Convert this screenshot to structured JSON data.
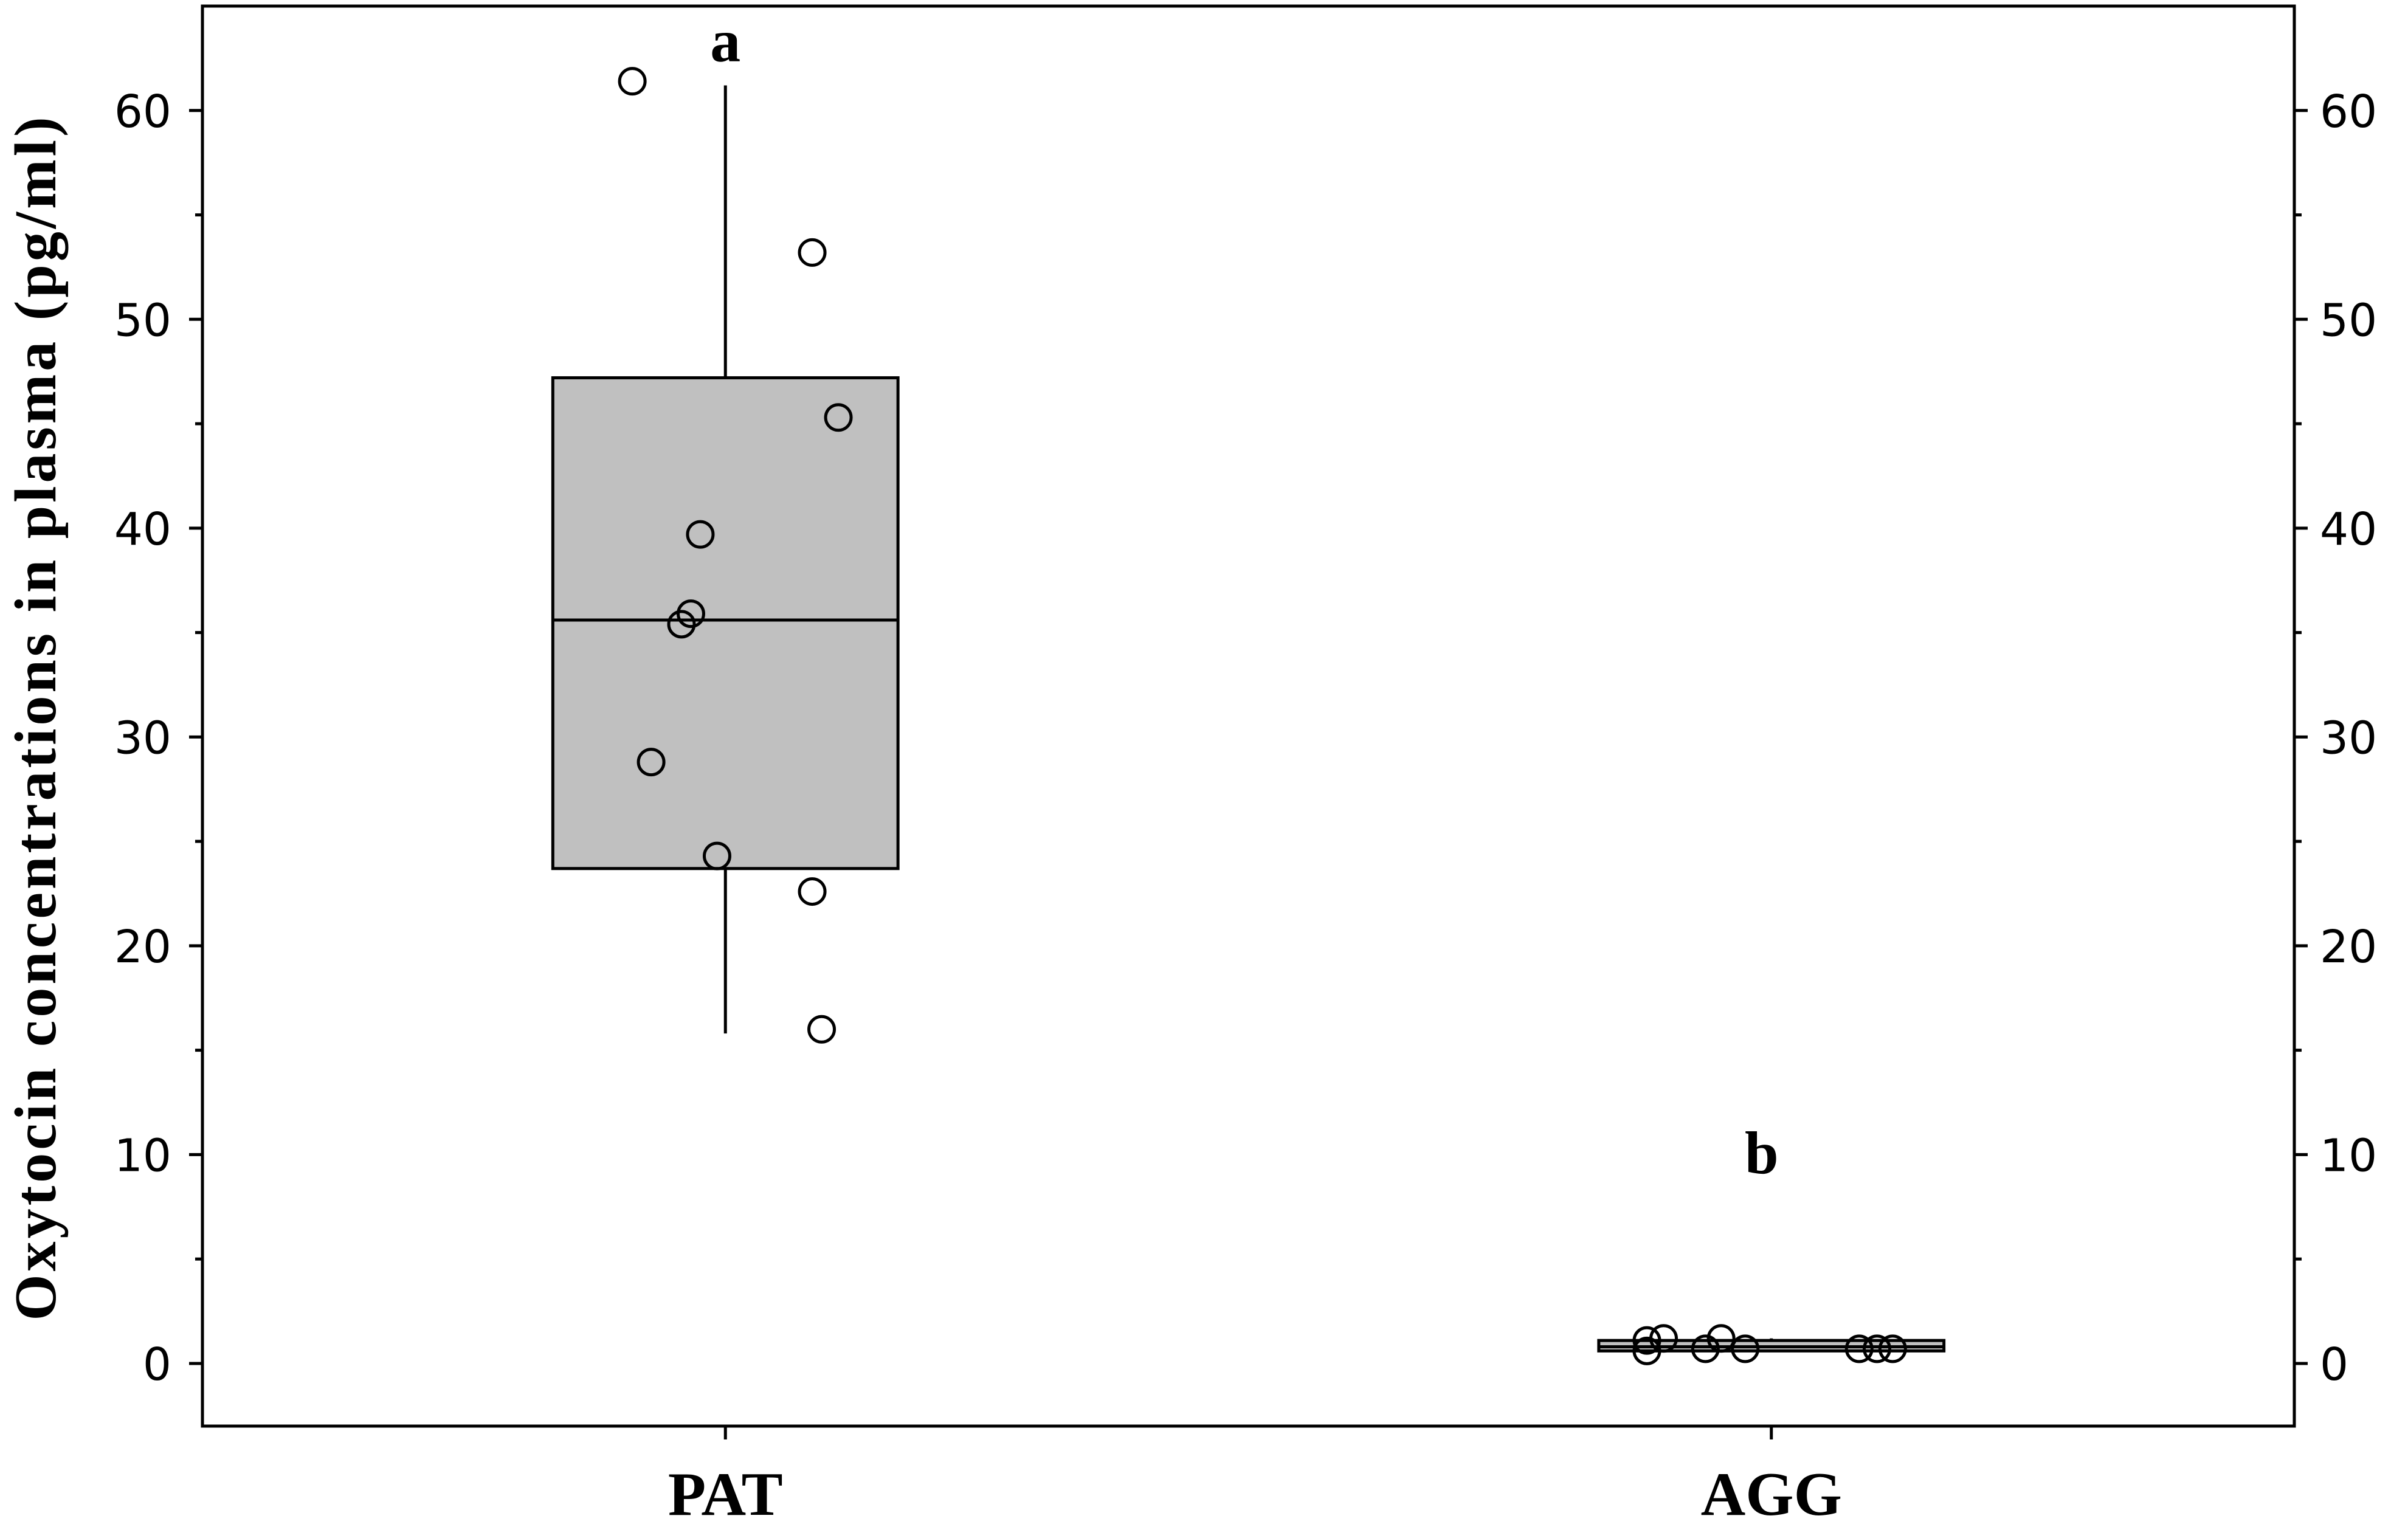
{
  "chart_data": {
    "type": "box",
    "ylabel": "Oxytocin concentrations in plasma (pg/ml)",
    "categories": [
      "PAT",
      "AGG"
    ],
    "ylim": [
      -3,
      65
    ],
    "yticks": [
      0,
      10,
      20,
      30,
      40,
      50,
      60
    ],
    "right_axis_mirrored": true,
    "grid": false,
    "groups": [
      {
        "q1": 23.7,
        "median": 35.6,
        "q3": 47.2,
        "whisker_low": 15.8,
        "whisker_high": 61.2,
        "points": [
          61.4,
          53.2,
          45.3,
          39.7,
          35.9,
          35.4,
          28.8,
          24.3,
          22.6,
          16.0
        ],
        "significance": "a"
      },
      {
        "q1": 0.6,
        "median": 0.8,
        "q3": 1.1,
        "whisker_low": 0.6,
        "whisker_high": 1.2,
        "points": [
          1.1,
          1.2,
          0.6,
          0.7,
          1.2,
          0.7,
          0.7,
          0.7,
          0.7
        ],
        "significance": "b"
      }
    ],
    "colors": {
      "box_fill": "#c0c0c0",
      "line": "#000000",
      "background": "#ffffff"
    }
  }
}
